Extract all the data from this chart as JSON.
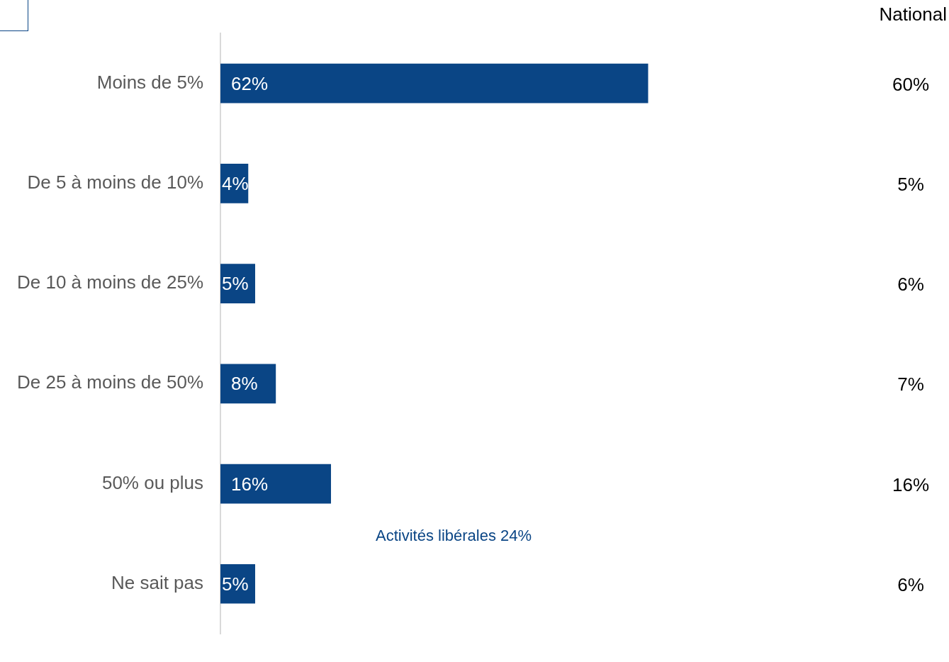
{
  "chart_data": {
    "type": "bar",
    "orientation": "horizontal",
    "categories": [
      "Moins de 5%",
      "De 5 à moins de 10%",
      "De 10 à moins de 25%",
      "De 25 à moins de 50%",
      "50% ou plus",
      "Ne sait pas"
    ],
    "values": [
      62,
      4,
      5,
      8,
      16,
      5
    ],
    "color": "#0a4585",
    "value_labels": [
      "62%",
      "4%",
      "5%",
      "8%",
      "16%",
      "5%"
    ],
    "legend": false,
    "tick_labels": "y",
    "annotations": [
      "National",
      "60%",
      "5%",
      "6%",
      "7%",
      "16%",
      "6%",
      "Activités libérales 24%"
    ]
  }
}
